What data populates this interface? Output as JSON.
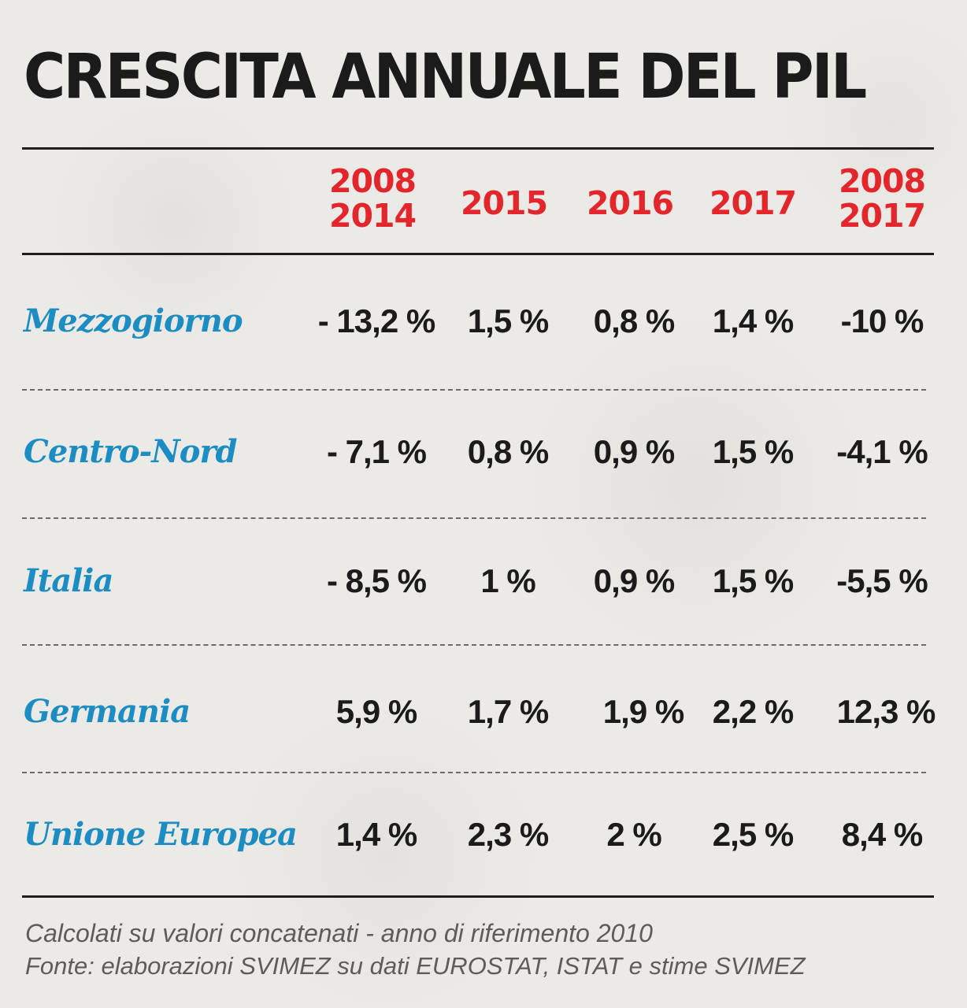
{
  "chart_data": {
    "type": "table",
    "title": "CRESCITA ANNUALE DEL PIL",
    "columns": [
      {
        "line1": "2008",
        "line2": "2014"
      },
      {
        "line1": "",
        "line2": "2015"
      },
      {
        "line1": "",
        "line2": "2016"
      },
      {
        "line1": "",
        "line2": "2017"
      },
      {
        "line1": "2008",
        "line2": "2017"
      }
    ],
    "rows": [
      {
        "label": "Mezzogiorno",
        "values": [
          "- 13,2 %",
          "1,5 %",
          "0,8 %",
          "1,4 %",
          "-10 %"
        ]
      },
      {
        "label": "Centro-Nord",
        "values": [
          "- 7,1 %",
          "0,8 %",
          "0,9 %",
          "1,5 %",
          "-4,1 %"
        ]
      },
      {
        "label": "Italia",
        "values": [
          "- 8,5 %",
          "1 %",
          "0,9 %",
          "1,5 %",
          "-5,5 %"
        ]
      },
      {
        "label": "Germania",
        "values": [
          "5,9 %",
          "1,7 %",
          "1,9 %",
          "2,2 %",
          "12,3 %"
        ]
      },
      {
        "label": "Unione Europea",
        "values": [
          "1,4 %",
          "2,3 %",
          "2 %",
          "2,5 %",
          "8,4 %"
        ]
      }
    ],
    "notes": [
      "Calcolati su valori concatenati - anno di riferimento 2010",
      "Fonte: elaborazioni SVIMEZ su dati EUROSTAT, ISTAT e stime SVIMEZ"
    ]
  },
  "colors": {
    "title": "#1b1b1b",
    "year_header": "#e3262c",
    "row_label": "#1c8dc2",
    "value": "#1b1b1b",
    "note": "#5f5c58"
  }
}
